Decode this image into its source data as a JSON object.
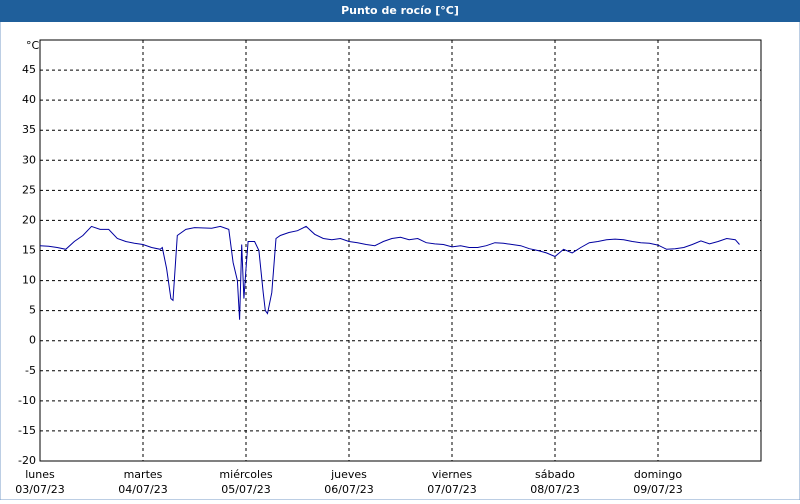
{
  "chart_data": {
    "type": "line",
    "title": "Punto de rocío [°C]",
    "y_label": "°C",
    "xlim": [
      0,
      168
    ],
    "ylim": [
      -20,
      50
    ],
    "yticks": [
      -20,
      -15,
      -10,
      -5,
      0,
      5,
      10,
      15,
      20,
      25,
      30,
      35,
      40,
      45
    ],
    "xticks": [
      {
        "value": 0,
        "label": "lunes",
        "date": "03/07/23"
      },
      {
        "value": 24,
        "label": "martes",
        "date": "04/07/23"
      },
      {
        "value": 48,
        "label": "miércoles",
        "date": "05/07/23"
      },
      {
        "value": 72,
        "label": "jueves",
        "date": "06/07/23"
      },
      {
        "value": 96,
        "label": "viernes",
        "date": "07/07/23"
      },
      {
        "value": 120,
        "label": "sábado",
        "date": "08/07/23"
      },
      {
        "value": 144,
        "label": "domingo",
        "date": "09/07/23"
      }
    ],
    "grid": true,
    "series": [
      {
        "color": "#0000a0",
        "x": [
          0,
          2,
          4,
          6,
          8,
          10,
          12,
          14,
          16,
          18,
          20,
          22,
          24,
          26,
          28,
          28.5,
          29.5,
          30.5,
          31,
          32,
          34,
          36,
          40,
          42,
          44,
          45,
          46,
          46.5,
          47,
          47.5,
          48,
          48.5,
          50,
          51,
          52,
          52.5,
          53,
          54,
          55,
          56,
          58,
          60,
          62,
          64,
          66,
          68,
          70,
          72,
          74,
          76,
          78,
          80,
          82,
          84,
          86,
          88,
          90,
          92,
          94,
          96,
          98,
          100,
          102,
          104,
          106,
          108,
          110,
          112,
          114,
          116,
          118,
          120,
          122,
          124,
          126,
          128,
          130,
          132,
          134,
          136,
          138,
          140,
          142,
          144,
          146,
          148,
          150,
          152,
          154,
          156,
          158,
          160,
          162,
          163
        ],
        "values": [
          15.8,
          15.7,
          15.5,
          15.2,
          16.5,
          17.5,
          19,
          18.5,
          18.5,
          17,
          16.5,
          16.2,
          16,
          15.5,
          15.2,
          15.5,
          12,
          7,
          6.7,
          17.5,
          18.5,
          18.8,
          18.7,
          19,
          18.5,
          13,
          10,
          3.5,
          16,
          7,
          12,
          16.5,
          16.5,
          15,
          8,
          5,
          4.5,
          8,
          17,
          17.5,
          18,
          18.3,
          19,
          17.7,
          17,
          16.8,
          17,
          16.5,
          16.3,
          16,
          15.8,
          16.5,
          17,
          17.2,
          16.8,
          17,
          16.3,
          16.1,
          16,
          15.6,
          15.8,
          15.5,
          15.5,
          15.8,
          16.3,
          16.2,
          16,
          15.8,
          15.3,
          15,
          14.6,
          14,
          15.2,
          14.6,
          15.5,
          16.3,
          16.5,
          16.8,
          16.9,
          16.8,
          16.5,
          16.3,
          16.2,
          15.9,
          15.2,
          15.3,
          15.5,
          16,
          16.6,
          16.1,
          16.5,
          17,
          16.8,
          16
        ]
      }
    ]
  }
}
